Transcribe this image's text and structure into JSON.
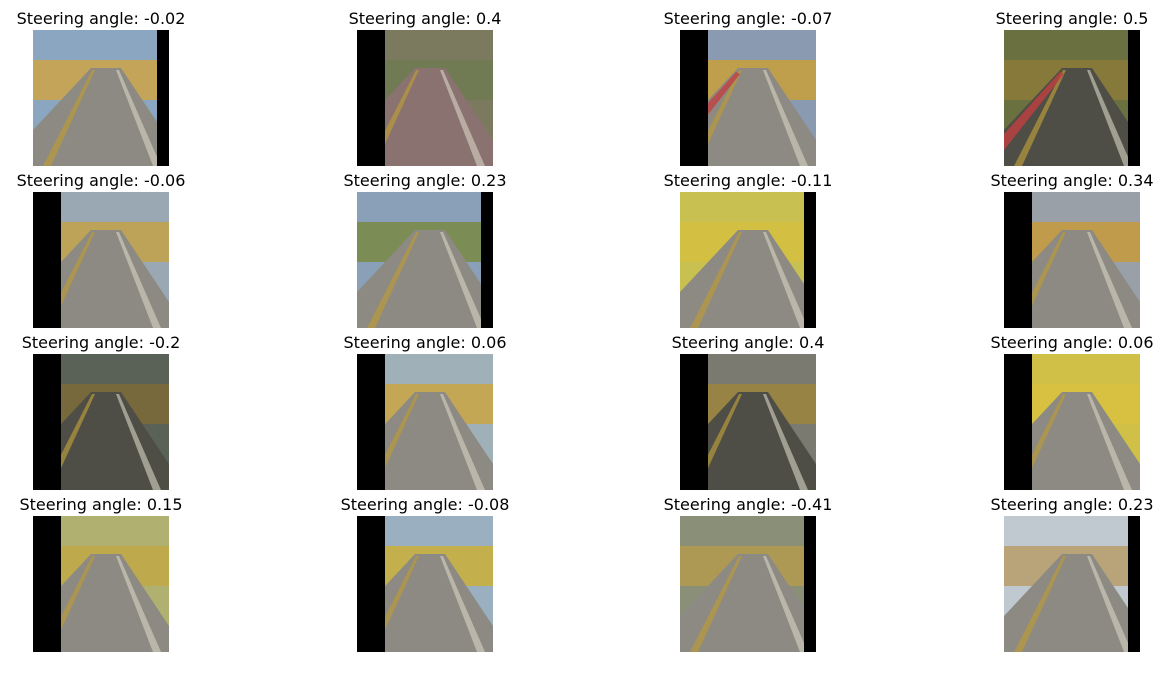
{
  "grid": {
    "title_prefix": "Steering angle: ",
    "cells": [
      {
        "angle": "-0.02",
        "scene": {
          "black": "right",
          "tint": "gray",
          "sky": "#8aa6c0",
          "side": "#c9a44e",
          "curb": false
        }
      },
      {
        "angle": "0.4",
        "scene": {
          "black": "left",
          "tint": "pink",
          "sky": "#7c7a5e",
          "side": "#6f7a52",
          "curb": false
        }
      },
      {
        "angle": "-0.07",
        "scene": {
          "black": "left",
          "tint": "gray",
          "sky": "#8a9ab0",
          "side": "#c4a040",
          "curb": true
        }
      },
      {
        "angle": "0.5",
        "scene": {
          "black": "right",
          "tint": "dark",
          "sky": "#6b7040",
          "side": "#8a7a3a",
          "curb": true
        }
      },
      {
        "angle": "-0.06",
        "scene": {
          "black": "left",
          "tint": "gray",
          "sky": "#9aa8b4",
          "side": "#c0a24e",
          "curb": false
        }
      },
      {
        "angle": "0.23",
        "scene": {
          "black": "right",
          "tint": "gray",
          "sky": "#8aa0b8",
          "side": "#7a8a4a",
          "curb": false
        }
      },
      {
        "angle": "-0.11",
        "scene": {
          "black": "right",
          "tint": "gray",
          "sky": "#c8c050",
          "side": "#d4c040",
          "curb": false
        }
      },
      {
        "angle": "0.34",
        "scene": {
          "black": "left",
          "tint": "gray",
          "sky": "#9aa0a8",
          "side": "#c49a40",
          "curb": false
        }
      },
      {
        "angle": "-0.2",
        "scene": {
          "black": "left",
          "tint": "dark",
          "sky": "#5a6258",
          "side": "#7a6a3a",
          "curb": false
        }
      },
      {
        "angle": "0.06",
        "scene": {
          "black": "left",
          "tint": "gray",
          "sky": "#a0b0b8",
          "side": "#c8a64a",
          "curb": false
        }
      },
      {
        "angle": "0.4",
        "scene": {
          "black": "left",
          "tint": "dark",
          "sky": "#7a7a70",
          "side": "#9a843e",
          "curb": false
        }
      },
      {
        "angle": "0.06",
        "scene": {
          "black": "left",
          "tint": "gray",
          "sky": "#d0c048",
          "side": "#d8c040",
          "curb": false
        }
      },
      {
        "angle": "0.15",
        "scene": {
          "black": "left",
          "tint": "gray",
          "sky": "#b0b070",
          "side": "#c0a848",
          "curb": false
        }
      },
      {
        "angle": "-0.08",
        "scene": {
          "black": "left",
          "tint": "gray",
          "sky": "#9ab0c0",
          "side": "#c8b040",
          "curb": false
        }
      },
      {
        "angle": "-0.41",
        "scene": {
          "black": "right",
          "tint": "gray",
          "sky": "#8a9078",
          "side": "#b09a50",
          "curb": false
        }
      },
      {
        "angle": "0.23",
        "scene": {
          "black": "right",
          "tint": "gray",
          "sky": "#c0c8d0",
          "side": "#b8a070",
          "curb": false
        }
      }
    ]
  }
}
